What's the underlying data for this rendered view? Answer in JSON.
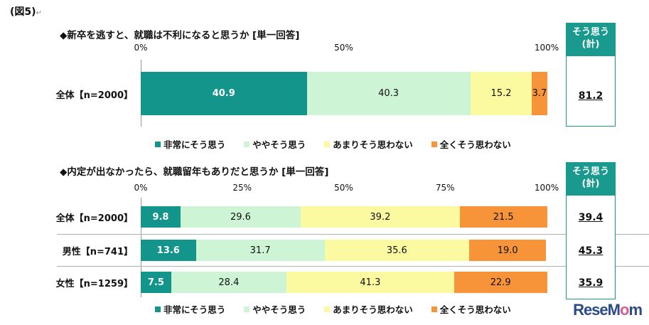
{
  "figure_label": "(図5)",
  "colors": {
    "very_much": "#14958b",
    "somewhat": "#cdf5d5",
    "not_much": "#fbfaa0",
    "not_at_all": "#f7943a",
    "accent": "#1a9a8e"
  },
  "legend": [
    "■非常にそう思う",
    "■ややそう思う",
    "■あまりそう思わない",
    "■全くそう思わない"
  ],
  "summary_header": [
    "そう思う",
    "(計)"
  ],
  "chart_data": [
    {
      "type": "bar",
      "orientation": "horizontal",
      "stacked": true,
      "title": "◆新卒を逃すと、就職は不利になると思うか [単一回答]",
      "ticks": [
        "0%",
        "50%",
        "100%"
      ],
      "tick_values": [
        0,
        50,
        100
      ],
      "xlim": [
        0,
        100
      ],
      "categories": [
        "全体【n=2000】"
      ],
      "series": [
        {
          "name": "非常にそう思う",
          "values": [
            40.9
          ]
        },
        {
          "name": "ややそう思う",
          "values": [
            40.3
          ]
        },
        {
          "name": "あまりそう思わない",
          "values": [
            15.2
          ]
        },
        {
          "name": "全くそう思わない",
          "values": [
            3.7
          ]
        }
      ],
      "labels": [
        [
          "40.9",
          "40.3",
          "15.2",
          "3.7"
        ]
      ],
      "summary_values": [
        "81.2"
      ]
    },
    {
      "type": "bar",
      "orientation": "horizontal",
      "stacked": true,
      "title": "◆内定が出なかったら、就職留年もありだと思うか [単一回答]",
      "ticks": [
        "0%",
        "25%",
        "50%",
        "75%",
        "100%"
      ],
      "tick_values": [
        0,
        25,
        50,
        75,
        100
      ],
      "xlim": [
        0,
        100
      ],
      "categories": [
        "全体【n=2000】",
        "男性【n=741】",
        "女性【n=1259】"
      ],
      "series": [
        {
          "name": "非常にそう思う",
          "values": [
            9.8,
            13.6,
            7.5
          ]
        },
        {
          "name": "ややそう思う",
          "values": [
            29.6,
            31.7,
            28.4
          ]
        },
        {
          "name": "あまりそう思わない",
          "values": [
            39.2,
            35.6,
            41.3
          ]
        },
        {
          "name": "全くそう思わない",
          "values": [
            21.5,
            19.0,
            22.9
          ]
        }
      ],
      "labels": [
        [
          "9.8",
          "29.6",
          "39.2",
          "21.5"
        ],
        [
          "13.6",
          "31.7",
          "35.6",
          "19.0"
        ],
        [
          "7.5",
          "28.4",
          "41.3",
          "22.9"
        ]
      ],
      "summary_values": [
        "39.4",
        "45.3",
        "35.9"
      ]
    }
  ],
  "logo": {
    "text_a": "ReseM",
    "text_b": "o",
    "text_c": "m"
  }
}
